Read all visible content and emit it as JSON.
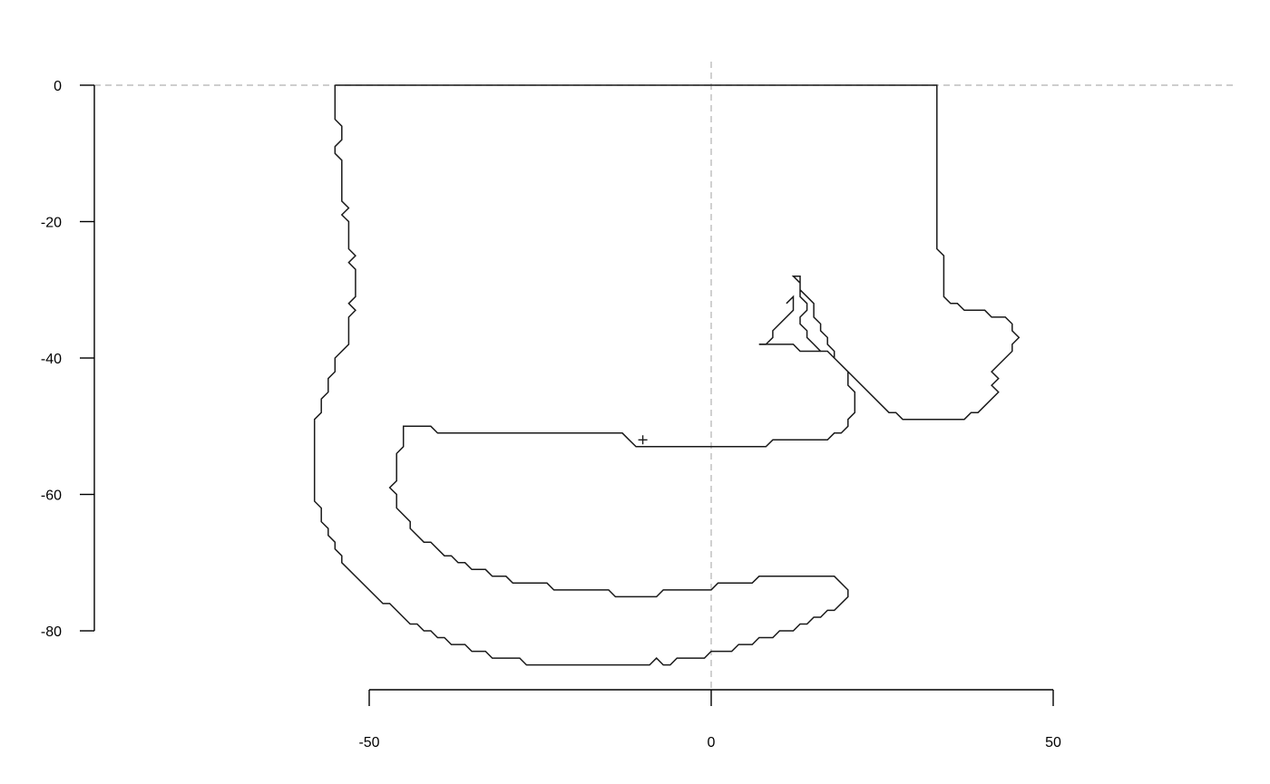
{
  "chart_data": {
    "type": "line",
    "title": "",
    "xlabel": "",
    "ylabel": "",
    "xlim": [
      -50,
      50
    ],
    "ylim": [
      -80,
      0
    ],
    "x_ticks": [
      -50,
      0,
      50
    ],
    "y_ticks": [
      0,
      -20,
      -40,
      -60,
      -80
    ],
    "x_tick_labels": [
      "-50",
      "0",
      "50"
    ],
    "y_tick_labels": [
      "0",
      "-20",
      "-40",
      "-60",
      "-80"
    ],
    "grid": false,
    "legend": "none",
    "reference_lines": [
      {
        "orientation": "horizontal",
        "value": 0,
        "style": "dashed",
        "color": "#bdbdbd"
      },
      {
        "orientation": "vertical",
        "value": 0,
        "style": "dashed",
        "color": "#bdbdbd"
      }
    ],
    "series": [
      {
        "points": [
          [
            -55,
            0
          ],
          [
            33,
            0
          ],
          [
            33,
            -24
          ],
          [
            34,
            -25
          ],
          [
            34,
            -31
          ],
          [
            35,
            -32
          ],
          [
            36,
            -32
          ],
          [
            37,
            -33
          ],
          [
            40,
            -33
          ],
          [
            41,
            -34
          ],
          [
            43,
            -34
          ],
          [
            44,
            -35
          ],
          [
            44,
            -36
          ],
          [
            45,
            -37
          ],
          [
            44,
            -38
          ],
          [
            44,
            -39
          ],
          [
            42,
            -41
          ],
          [
            41,
            -42
          ],
          [
            42,
            -43
          ],
          [
            41,
            -44
          ],
          [
            42,
            -45
          ],
          [
            39,
            -48
          ],
          [
            38,
            -48
          ],
          [
            37,
            -49
          ],
          [
            28,
            -49
          ],
          [
            27,
            -48
          ],
          [
            26,
            -48
          ],
          [
            19,
            -41
          ],
          [
            18,
            -40
          ],
          [
            17,
            -39
          ],
          [
            16,
            -39
          ],
          [
            15,
            -38
          ],
          [
            14,
            -37
          ],
          [
            14,
            -36
          ],
          [
            13,
            -35
          ],
          [
            13,
            -34
          ],
          [
            14,
            -33
          ],
          [
            14,
            -32
          ],
          [
            13,
            -31
          ],
          [
            13,
            -29
          ],
          [
            12,
            -28
          ],
          [
            13,
            -28
          ],
          [
            13,
            -30
          ],
          [
            14,
            -31
          ],
          [
            15,
            -32
          ],
          [
            15,
            -34
          ],
          [
            16,
            -35
          ],
          [
            16,
            -36
          ],
          [
            17,
            -37
          ],
          [
            17,
            -38
          ],
          [
            18,
            -39
          ],
          [
            18,
            -40
          ],
          [
            20,
            -42
          ],
          [
            20,
            -44
          ],
          [
            21,
            -45
          ],
          [
            21,
            -48
          ],
          [
            20,
            -49
          ],
          [
            20,
            -50
          ],
          [
            19,
            -51
          ],
          [
            18,
            -51
          ],
          [
            17,
            -52
          ],
          [
            9,
            -52
          ],
          [
            8,
            -53
          ],
          [
            -11,
            -53
          ],
          [
            -12,
            -52
          ],
          [
            -13,
            -51
          ],
          [
            -40,
            -51
          ],
          [
            -41,
            -50
          ],
          [
            -45,
            -50
          ],
          [
            -45,
            -53
          ],
          [
            -46,
            -54
          ],
          [
            -46,
            -58
          ],
          [
            -47,
            -59
          ],
          [
            -46,
            -60
          ],
          [
            -46,
            -62
          ],
          [
            -44,
            -64
          ],
          [
            -44,
            -65
          ],
          [
            -42,
            -67
          ],
          [
            -41,
            -67
          ],
          [
            -39,
            -69
          ],
          [
            -38,
            -69
          ],
          [
            -37,
            -70
          ],
          [
            -36,
            -70
          ],
          [
            -35,
            -71
          ],
          [
            -33,
            -71
          ],
          [
            -32,
            -72
          ],
          [
            -30,
            -72
          ],
          [
            -29,
            -73
          ],
          [
            -24,
            -73
          ],
          [
            -23,
            -74
          ],
          [
            -15,
            -74
          ],
          [
            -14,
            -75
          ],
          [
            -8,
            -75
          ],
          [
            -7,
            -74
          ],
          [
            0,
            -74
          ],
          [
            1,
            -73
          ],
          [
            6,
            -73
          ],
          [
            7,
            -72
          ],
          [
            18,
            -72
          ],
          [
            20,
            -74
          ],
          [
            20,
            -75
          ],
          [
            18,
            -77
          ],
          [
            17,
            -77
          ],
          [
            16,
            -78
          ],
          [
            15,
            -78
          ],
          [
            14,
            -79
          ],
          [
            13,
            -79
          ],
          [
            12,
            -80
          ],
          [
            10,
            -80
          ],
          [
            9,
            -81
          ],
          [
            7,
            -81
          ],
          [
            6,
            -82
          ],
          [
            4,
            -82
          ],
          [
            3,
            -83
          ],
          [
            0,
            -83
          ],
          [
            -1,
            -84
          ],
          [
            -5,
            -84
          ],
          [
            -6,
            -85
          ],
          [
            -7,
            -85
          ],
          [
            -8,
            -84
          ],
          [
            -9,
            -85
          ],
          [
            -27,
            -85
          ],
          [
            -28,
            -84
          ],
          [
            -32,
            -84
          ],
          [
            -33,
            -83
          ],
          [
            -35,
            -83
          ],
          [
            -36,
            -82
          ],
          [
            -38,
            -82
          ],
          [
            -39,
            -81
          ],
          [
            -40,
            -81
          ],
          [
            -41,
            -80
          ],
          [
            -42,
            -80
          ],
          [
            -43,
            -79
          ],
          [
            -44,
            -79
          ],
          [
            -47,
            -76
          ],
          [
            -48,
            -76
          ],
          [
            -54,
            -70
          ],
          [
            -54,
            -69
          ],
          [
            -55,
            -68
          ],
          [
            -55,
            -67
          ],
          [
            -56,
            -66
          ],
          [
            -56,
            -65
          ],
          [
            -57,
            -64
          ],
          [
            -57,
            -62
          ],
          [
            -58,
            -61
          ],
          [
            -58,
            -49
          ],
          [
            -57,
            -48
          ],
          [
            -57,
            -46
          ],
          [
            -56,
            -45
          ],
          [
            -56,
            -43
          ],
          [
            -55,
            -42
          ],
          [
            -55,
            -40
          ],
          [
            -53,
            -38
          ],
          [
            -53,
            -34
          ],
          [
            -52,
            -33
          ],
          [
            -53,
            -32
          ],
          [
            -52,
            -31
          ],
          [
            -52,
            -27
          ],
          [
            -53,
            -26
          ],
          [
            -52,
            -25
          ],
          [
            -53,
            -24
          ],
          [
            -53,
            -20
          ],
          [
            -54,
            -19
          ],
          [
            -53,
            -18
          ],
          [
            -54,
            -17
          ],
          [
            -54,
            -11
          ],
          [
            -55,
            -10
          ],
          [
            -55,
            -9
          ],
          [
            -54,
            -8
          ],
          [
            -54,
            -6
          ],
          [
            -55,
            -5
          ],
          [
            -55,
            0
          ]
        ]
      },
      {
        "points": [
          [
            7,
            -38
          ],
          [
            12,
            -38
          ],
          [
            13,
            -39
          ],
          [
            16,
            -39
          ]
        ]
      },
      {
        "points": [
          [
            11,
            -32
          ],
          [
            12,
            -31
          ],
          [
            12,
            -33
          ],
          [
            9,
            -36
          ],
          [
            9,
            -37
          ],
          [
            8,
            -38
          ],
          [
            7,
            -38
          ]
        ]
      }
    ],
    "markers": [
      {
        "x": -10,
        "y": -52,
        "symbol": "+"
      }
    ]
  }
}
